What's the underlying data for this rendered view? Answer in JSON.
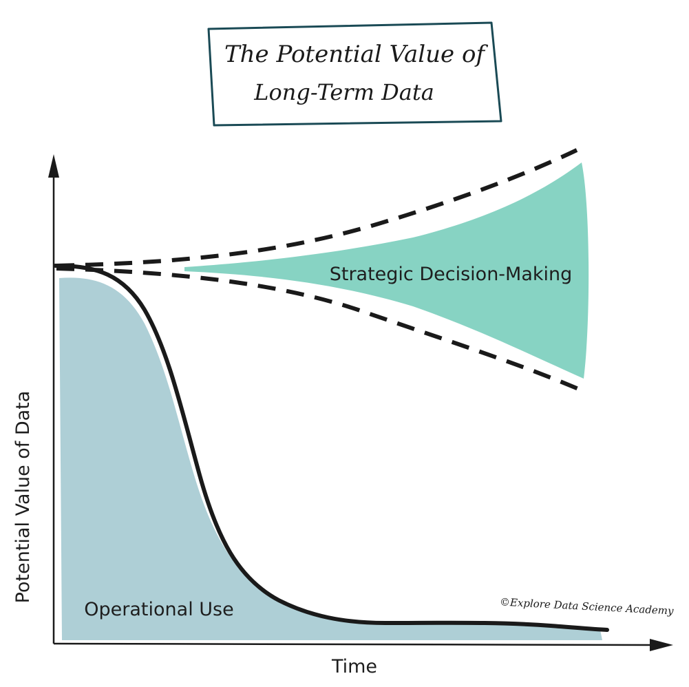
{
  "title": {
    "line1": "The Potential Value of",
    "line2": "Long-Term Data"
  },
  "axes": {
    "x_label": "Time",
    "y_label": "Potential Value of Data"
  },
  "regions": {
    "operational": {
      "label": "Operational Use",
      "color": "#aecfd6"
    },
    "strategic": {
      "label": "Strategic Decision-Making",
      "color": "#87d3c3"
    }
  },
  "credit": "©Explore Data Science Academy",
  "colors": {
    "title_border": "#1a4a55",
    "ink": "#1a1a1a"
  }
}
